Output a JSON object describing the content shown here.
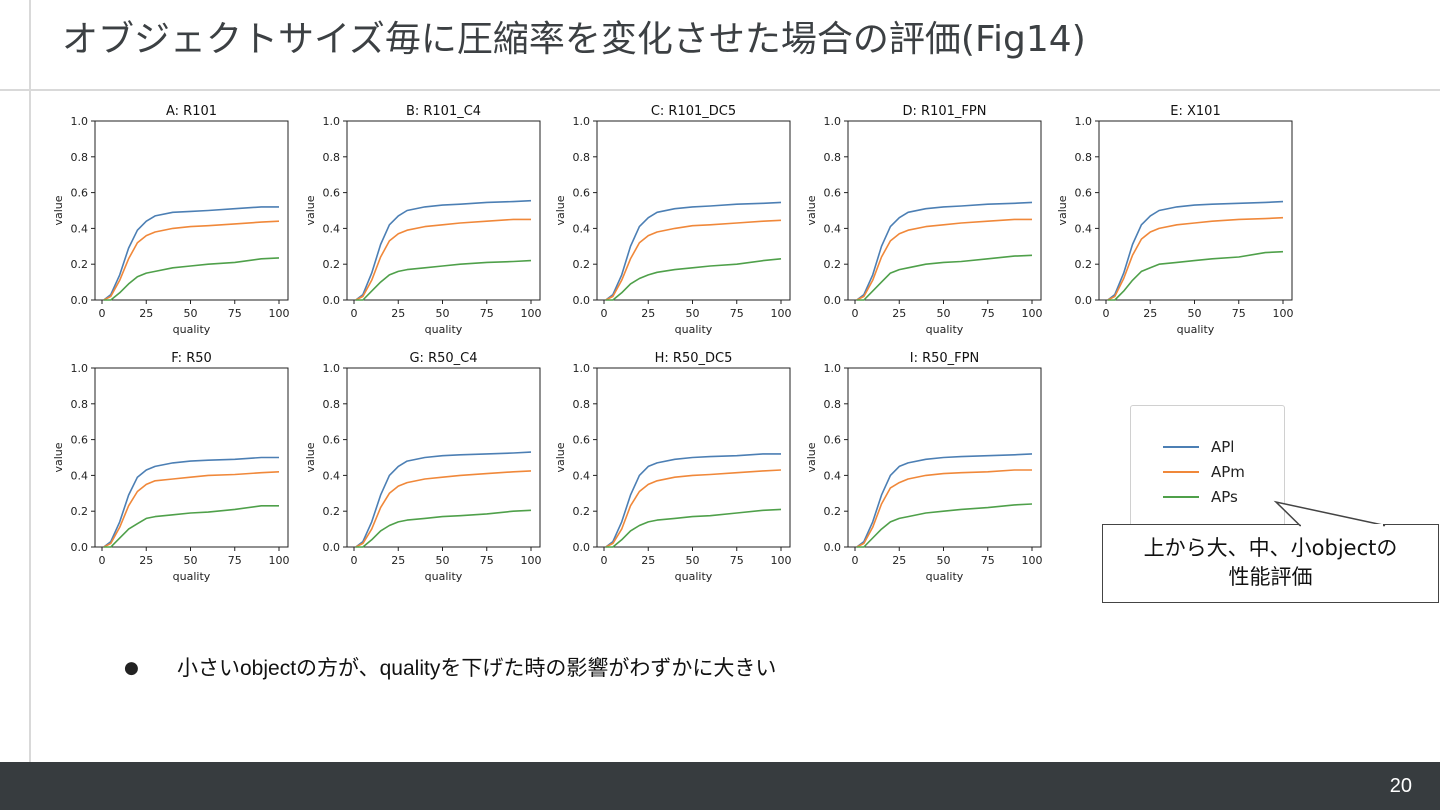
{
  "slide": {
    "title": "オブジェクトサイズ毎に圧縮率を変化させた場合の評価(Fig14)",
    "page_number": "20",
    "bullet": "小さいobjectの方が、qualityを下げた時の影響がわずかに大きい",
    "callout": {
      "line1": "上から大、中、小objectの",
      "line2": "性能評価"
    },
    "legend": [
      {
        "label": "APl",
        "color": "#4c7fb4"
      },
      {
        "label": "APm",
        "color": "#f0883a"
      },
      {
        "label": "APs",
        "color": "#4fa04a"
      }
    ]
  },
  "chart_data": [
    {
      "type": "line",
      "title": "A: R101",
      "xlabel": "quality",
      "ylabel": "value",
      "xlim": [
        0,
        100
      ],
      "ylim": [
        0,
        1.0
      ],
      "xticks": [
        "0",
        "25",
        "50",
        "75",
        "100"
      ],
      "yticks": [
        "0.0",
        "0.2",
        "0.4",
        "0.6",
        "0.8",
        "1.0"
      ],
      "x": [
        1,
        5,
        10,
        15,
        20,
        25,
        30,
        40,
        50,
        60,
        75,
        90,
        100
      ],
      "series": [
        {
          "name": "APl",
          "color": "#4c7fb4",
          "values": [
            0.0,
            0.03,
            0.14,
            0.29,
            0.39,
            0.44,
            0.47,
            0.49,
            0.495,
            0.5,
            0.51,
            0.52,
            0.52
          ]
        },
        {
          "name": "APm",
          "color": "#f0883a",
          "values": [
            0.0,
            0.02,
            0.11,
            0.23,
            0.32,
            0.36,
            0.38,
            0.4,
            0.41,
            0.415,
            0.425,
            0.435,
            0.44
          ]
        },
        {
          "name": "APs",
          "color": "#4fa04a",
          "values": [
            0.0,
            0.0,
            0.04,
            0.09,
            0.13,
            0.15,
            0.16,
            0.18,
            0.19,
            0.2,
            0.21,
            0.23,
            0.235
          ]
        }
      ]
    },
    {
      "type": "line",
      "title": "B: R101_C4",
      "xlabel": "quality",
      "ylabel": "value",
      "xlim": [
        0,
        100
      ],
      "ylim": [
        0,
        1.0
      ],
      "xticks": [
        "0",
        "25",
        "50",
        "75",
        "100"
      ],
      "yticks": [
        "0.0",
        "0.2",
        "0.4",
        "0.6",
        "0.8",
        "1.0"
      ],
      "x": [
        1,
        5,
        10,
        15,
        20,
        25,
        30,
        40,
        50,
        60,
        75,
        90,
        100
      ],
      "series": [
        {
          "name": "APl",
          "color": "#4c7fb4",
          "values": [
            0.0,
            0.03,
            0.15,
            0.31,
            0.42,
            0.47,
            0.5,
            0.52,
            0.53,
            0.535,
            0.545,
            0.55,
            0.555
          ]
        },
        {
          "name": "APm",
          "color": "#f0883a",
          "values": [
            0.0,
            0.02,
            0.11,
            0.24,
            0.33,
            0.37,
            0.39,
            0.41,
            0.42,
            0.43,
            0.44,
            0.45,
            0.45
          ]
        },
        {
          "name": "APs",
          "color": "#4fa04a",
          "values": [
            0.0,
            0.0,
            0.05,
            0.1,
            0.14,
            0.16,
            0.17,
            0.18,
            0.19,
            0.2,
            0.21,
            0.215,
            0.22
          ]
        }
      ]
    },
    {
      "type": "line",
      "title": "C: R101_DC5",
      "xlabel": "quality",
      "ylabel": "value",
      "xlim": [
        0,
        100
      ],
      "ylim": [
        0,
        1.0
      ],
      "xticks": [
        "0",
        "25",
        "50",
        "75",
        "100"
      ],
      "yticks": [
        "0.0",
        "0.2",
        "0.4",
        "0.6",
        "0.8",
        "1.0"
      ],
      "x": [
        1,
        5,
        10,
        15,
        20,
        25,
        30,
        40,
        50,
        60,
        75,
        90,
        100
      ],
      "series": [
        {
          "name": "APl",
          "color": "#4c7fb4",
          "values": [
            0.0,
            0.03,
            0.14,
            0.3,
            0.41,
            0.46,
            0.49,
            0.51,
            0.52,
            0.525,
            0.535,
            0.54,
            0.545
          ]
        },
        {
          "name": "APm",
          "color": "#f0883a",
          "values": [
            0.0,
            0.02,
            0.11,
            0.23,
            0.32,
            0.36,
            0.38,
            0.4,
            0.415,
            0.42,
            0.43,
            0.44,
            0.445
          ]
        },
        {
          "name": "APs",
          "color": "#4fa04a",
          "values": [
            0.0,
            0.0,
            0.04,
            0.09,
            0.12,
            0.14,
            0.155,
            0.17,
            0.18,
            0.19,
            0.2,
            0.22,
            0.23
          ]
        }
      ]
    },
    {
      "type": "line",
      "title": "D: R101_FPN",
      "xlabel": "quality",
      "ylabel": "value",
      "xlim": [
        0,
        100
      ],
      "ylim": [
        0,
        1.0
      ],
      "xticks": [
        "0",
        "25",
        "50",
        "75",
        "100"
      ],
      "yticks": [
        "0.0",
        "0.2",
        "0.4",
        "0.6",
        "0.8",
        "1.0"
      ],
      "x": [
        1,
        5,
        10,
        15,
        20,
        25,
        30,
        40,
        50,
        60,
        75,
        90,
        100
      ],
      "series": [
        {
          "name": "APl",
          "color": "#4c7fb4",
          "values": [
            0.0,
            0.03,
            0.14,
            0.3,
            0.41,
            0.46,
            0.49,
            0.51,
            0.52,
            0.525,
            0.535,
            0.54,
            0.545
          ]
        },
        {
          "name": "APm",
          "color": "#f0883a",
          "values": [
            0.0,
            0.02,
            0.11,
            0.24,
            0.33,
            0.37,
            0.39,
            0.41,
            0.42,
            0.43,
            0.44,
            0.45,
            0.45
          ]
        },
        {
          "name": "APs",
          "color": "#4fa04a",
          "values": [
            0.0,
            0.0,
            0.05,
            0.1,
            0.15,
            0.17,
            0.18,
            0.2,
            0.21,
            0.215,
            0.23,
            0.245,
            0.25
          ]
        }
      ]
    },
    {
      "type": "line",
      "title": "E: X101",
      "xlabel": "quality",
      "ylabel": "value",
      "xlim": [
        0,
        100
      ],
      "ylim": [
        0,
        1.0
      ],
      "xticks": [
        "0",
        "25",
        "50",
        "75",
        "100"
      ],
      "yticks": [
        "0.0",
        "0.2",
        "0.4",
        "0.6",
        "0.8",
        "1.0"
      ],
      "x": [
        1,
        5,
        10,
        15,
        20,
        25,
        30,
        40,
        50,
        60,
        75,
        90,
        100
      ],
      "series": [
        {
          "name": "APl",
          "color": "#4c7fb4",
          "values": [
            0.0,
            0.03,
            0.15,
            0.31,
            0.42,
            0.47,
            0.5,
            0.52,
            0.53,
            0.535,
            0.54,
            0.545,
            0.55
          ]
        },
        {
          "name": "APm",
          "color": "#f0883a",
          "values": [
            0.0,
            0.02,
            0.12,
            0.25,
            0.34,
            0.38,
            0.4,
            0.42,
            0.43,
            0.44,
            0.45,
            0.455,
            0.46
          ]
        },
        {
          "name": "APs",
          "color": "#4fa04a",
          "values": [
            0.0,
            0.0,
            0.05,
            0.11,
            0.16,
            0.18,
            0.2,
            0.21,
            0.22,
            0.23,
            0.24,
            0.265,
            0.27
          ]
        }
      ]
    },
    {
      "type": "line",
      "title": "F: R50",
      "xlabel": "quality",
      "ylabel": "value",
      "xlim": [
        0,
        100
      ],
      "ylim": [
        0,
        1.0
      ],
      "xticks": [
        "0",
        "25",
        "50",
        "75",
        "100"
      ],
      "yticks": [
        "0.0",
        "0.2",
        "0.4",
        "0.6",
        "0.8",
        "1.0"
      ],
      "x": [
        1,
        5,
        10,
        15,
        20,
        25,
        30,
        40,
        50,
        60,
        75,
        90,
        100
      ],
      "series": [
        {
          "name": "APl",
          "color": "#4c7fb4",
          "values": [
            0.0,
            0.03,
            0.14,
            0.29,
            0.39,
            0.43,
            0.45,
            0.47,
            0.48,
            0.485,
            0.49,
            0.5,
            0.5
          ]
        },
        {
          "name": "APm",
          "color": "#f0883a",
          "values": [
            0.0,
            0.02,
            0.11,
            0.23,
            0.31,
            0.35,
            0.37,
            0.38,
            0.39,
            0.4,
            0.405,
            0.415,
            0.42
          ]
        },
        {
          "name": "APs",
          "color": "#4fa04a",
          "values": [
            0.0,
            0.0,
            0.05,
            0.1,
            0.13,
            0.16,
            0.17,
            0.18,
            0.19,
            0.195,
            0.21,
            0.23,
            0.23
          ]
        }
      ]
    },
    {
      "type": "line",
      "title": "G: R50_C4",
      "xlabel": "quality",
      "ylabel": "value",
      "xlim": [
        0,
        100
      ],
      "ylim": [
        0,
        1.0
      ],
      "xticks": [
        "0",
        "25",
        "50",
        "75",
        "100"
      ],
      "yticks": [
        "0.0",
        "0.2",
        "0.4",
        "0.6",
        "0.8",
        "1.0"
      ],
      "x": [
        1,
        5,
        10,
        15,
        20,
        25,
        30,
        40,
        50,
        60,
        75,
        90,
        100
      ],
      "series": [
        {
          "name": "APl",
          "color": "#4c7fb4",
          "values": [
            0.0,
            0.03,
            0.14,
            0.29,
            0.4,
            0.45,
            0.48,
            0.5,
            0.51,
            0.515,
            0.52,
            0.525,
            0.53
          ]
        },
        {
          "name": "APm",
          "color": "#f0883a",
          "values": [
            0.0,
            0.02,
            0.1,
            0.22,
            0.3,
            0.34,
            0.36,
            0.38,
            0.39,
            0.4,
            0.41,
            0.42,
            0.425
          ]
        },
        {
          "name": "APs",
          "color": "#4fa04a",
          "values": [
            0.0,
            0.0,
            0.04,
            0.09,
            0.12,
            0.14,
            0.15,
            0.16,
            0.17,
            0.175,
            0.185,
            0.2,
            0.205
          ]
        }
      ]
    },
    {
      "type": "line",
      "title": "H: R50_DC5",
      "xlabel": "quality",
      "ylabel": "value",
      "xlim": [
        0,
        100
      ],
      "ylim": [
        0,
        1.0
      ],
      "xticks": [
        "0",
        "25",
        "50",
        "75",
        "100"
      ],
      "yticks": [
        "0.0",
        "0.2",
        "0.4",
        "0.6",
        "0.8",
        "1.0"
      ],
      "x": [
        1,
        5,
        10,
        15,
        20,
        25,
        30,
        40,
        50,
        60,
        75,
        90,
        100
      ],
      "series": [
        {
          "name": "APl",
          "color": "#4c7fb4",
          "values": [
            0.0,
            0.03,
            0.14,
            0.29,
            0.4,
            0.45,
            0.47,
            0.49,
            0.5,
            0.505,
            0.51,
            0.52,
            0.52
          ]
        },
        {
          "name": "APm",
          "color": "#f0883a",
          "values": [
            0.0,
            0.02,
            0.1,
            0.23,
            0.31,
            0.35,
            0.37,
            0.39,
            0.4,
            0.405,
            0.415,
            0.425,
            0.43
          ]
        },
        {
          "name": "APs",
          "color": "#4fa04a",
          "values": [
            0.0,
            0.0,
            0.04,
            0.09,
            0.12,
            0.14,
            0.15,
            0.16,
            0.17,
            0.175,
            0.19,
            0.205,
            0.21
          ]
        }
      ]
    },
    {
      "type": "line",
      "title": "I: R50_FPN",
      "xlabel": "quality",
      "ylabel": "value",
      "xlim": [
        0,
        100
      ],
      "ylim": [
        0,
        1.0
      ],
      "xticks": [
        "0",
        "25",
        "50",
        "75",
        "100"
      ],
      "yticks": [
        "0.0",
        "0.2",
        "0.4",
        "0.6",
        "0.8",
        "1.0"
      ],
      "x": [
        1,
        5,
        10,
        15,
        20,
        25,
        30,
        40,
        50,
        60,
        75,
        90,
        100
      ],
      "series": [
        {
          "name": "APl",
          "color": "#4c7fb4",
          "values": [
            0.0,
            0.03,
            0.14,
            0.29,
            0.4,
            0.45,
            0.47,
            0.49,
            0.5,
            0.505,
            0.51,
            0.515,
            0.52
          ]
        },
        {
          "name": "APm",
          "color": "#f0883a",
          "values": [
            0.0,
            0.02,
            0.11,
            0.24,
            0.33,
            0.36,
            0.38,
            0.4,
            0.41,
            0.415,
            0.42,
            0.43,
            0.43
          ]
        },
        {
          "name": "APs",
          "color": "#4fa04a",
          "values": [
            0.0,
            0.0,
            0.05,
            0.1,
            0.14,
            0.16,
            0.17,
            0.19,
            0.2,
            0.21,
            0.22,
            0.235,
            0.24
          ]
        }
      ]
    }
  ]
}
